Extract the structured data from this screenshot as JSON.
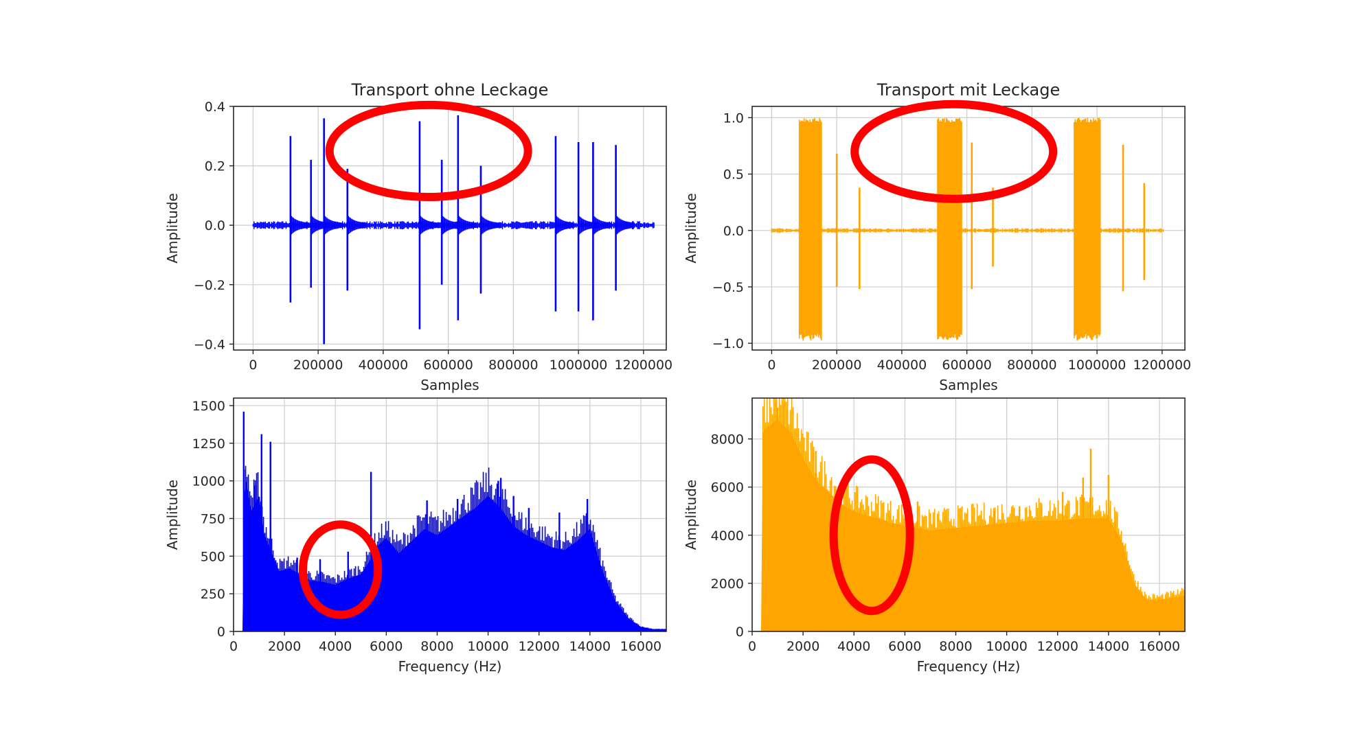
{
  "chart_data": [
    {
      "id": "time_a",
      "type": "line",
      "title": "Transport ohne Leckage",
      "xlabel": "Samples",
      "ylabel": "Amplitude",
      "xlim": [
        -60000,
        1270000
      ],
      "ylim": [
        -0.42,
        0.4
      ],
      "xticks": [
        0,
        200000,
        400000,
        600000,
        800000,
        1000000,
        1200000
      ],
      "xtick_labels": [
        "0",
        "200000",
        "400000",
        "600000",
        "800000",
        "1000000",
        "1200000"
      ],
      "yticks": [
        -0.4,
        -0.2,
        0.0,
        0.2,
        0.4
      ],
      "ytick_labels": [
        "−0.4",
        "−0.2",
        "0.0",
        "0.2",
        "0.4"
      ],
      "grid": true,
      "color": "#0000ff",
      "series": [
        {
          "x": [
            0,
            115000,
            178000,
            218000,
            290000,
            512000,
            580000,
            630000,
            700000,
            930000,
            1000000,
            1045000,
            1115000,
            1235000
          ],
          "peak_max": [
            0.005,
            0.3,
            0.22,
            0.36,
            0.19,
            0.35,
            0.22,
            0.37,
            0.2,
            0.3,
            0.28,
            0.28,
            0.27,
            0.005
          ],
          "peak_min": [
            -0.005,
            -0.26,
            -0.21,
            -0.4,
            -0.22,
            -0.35,
            -0.2,
            -0.32,
            -0.23,
            -0.29,
            -0.29,
            -0.32,
            -0.22,
            -0.005
          ]
        }
      ],
      "annotation": {
        "type": "ellipse",
        "cx": 540000,
        "cy": 0.25,
        "rx": 610000,
        "ry": 0.155,
        "color": "#ff0000"
      }
    },
    {
      "id": "time_b",
      "type": "line",
      "title": "Transport mit Leckage",
      "xlabel": "Samples",
      "ylabel": "Amplitude",
      "xlim": [
        -60000,
        1270000
      ],
      "ylim": [
        -1.06,
        1.1
      ],
      "xticks": [
        0,
        200000,
        400000,
        600000,
        800000,
        1000000,
        1200000
      ],
      "xtick_labels": [
        "0",
        "200000",
        "400000",
        "600000",
        "800000",
        "1000000",
        "1200000"
      ],
      "yticks": [
        -1.0,
        -0.5,
        0.0,
        0.5,
        1.0
      ],
      "ytick_labels": [
        "−1.0",
        "−0.5",
        "0.0",
        "0.5",
        "1.0"
      ],
      "grid": true,
      "color": "#ffa500",
      "series": [
        {
          "bursts": [
            [
              85000,
              155000
            ],
            [
              510000,
              585000
            ],
            [
              930000,
              1010000
            ]
          ],
          "spikes_x": [
            200000,
            270000,
            615000,
            680000,
            1080000,
            1145000
          ],
          "spikes_max": [
            0.68,
            0.38,
            0.78,
            0.38,
            0.76,
            0.42
          ],
          "spikes_min": [
            -0.5,
            -0.52,
            -0.52,
            -0.32,
            -0.54,
            -0.44
          ]
        }
      ],
      "annotation": {
        "type": "ellipse",
        "cx": 560000,
        "cy": 0.7,
        "rx": 610000,
        "ry": 0.42,
        "color": "#ff0000"
      }
    },
    {
      "id": "freq_a",
      "type": "area",
      "title": "",
      "xlabel": "Frequency (Hz)",
      "ylabel": "Amplitude",
      "xlim": [
        0,
        17000
      ],
      "ylim": [
        0,
        1550
      ],
      "xticks": [
        0,
        2000,
        4000,
        6000,
        8000,
        10000,
        12000,
        14000,
        16000
      ],
      "xtick_labels": [
        "0",
        "2000",
        "4000",
        "6000",
        "8000",
        "10000",
        "12000",
        "14000",
        "16000"
      ],
      "yticks": [
        0,
        250,
        500,
        750,
        1000,
        1250,
        1500
      ],
      "ytick_labels": [
        "0",
        "250",
        "500",
        "750",
        "1000",
        "1250",
        "1500"
      ],
      "grid": true,
      "color": "#0000ff",
      "series": [
        {
          "x": [
            0,
            350,
            420,
            500,
            700,
            1000,
            1200,
            1500,
            1800,
            2200,
            2600,
            3000,
            3500,
            4000,
            4500,
            5000,
            5400,
            5600,
            6000,
            6500,
            7000,
            7500,
            8000,
            8500,
            9000,
            9500,
            10000,
            10500,
            11000,
            11500,
            12000,
            12500,
            13000,
            13500,
            14000,
            14500,
            15000,
            15500,
            16000,
            16500,
            17000
          ],
          "y": [
            0,
            0,
            900,
            1000,
            800,
            900,
            650,
            520,
            400,
            420,
            380,
            340,
            330,
            310,
            350,
            380,
            480,
            560,
            620,
            520,
            600,
            680,
            640,
            700,
            760,
            820,
            900,
            820,
            700,
            640,
            600,
            560,
            540,
            600,
            680,
            400,
            200,
            90,
            30,
            15,
            15
          ],
          "peaks_x": [
            400,
            850,
            1100,
            1450,
            2500,
            3400,
            4500,
            5400,
            7600,
            8800,
            10400,
            10500,
            11000,
            11600,
            12800,
            13900
          ],
          "peaks_y": [
            1460,
            970,
            1310,
            1260,
            490,
            480,
            530,
            1060,
            870,
            880,
            1000,
            1020,
            900,
            820,
            790,
            880
          ]
        }
      ],
      "annotation": {
        "type": "ellipse",
        "cx": 4200,
        "cy": 410,
        "rx": 2950,
        "ry": 300,
        "color": "#ff0000"
      }
    },
    {
      "id": "freq_b",
      "type": "area",
      "title": "",
      "xlabel": "Frequency (Hz)",
      "ylabel": "Amplitude",
      "xlim": [
        0,
        17000
      ],
      "ylim": [
        0,
        9700
      ],
      "xticks": [
        0,
        2000,
        4000,
        6000,
        8000,
        10000,
        12000,
        14000,
        16000
      ],
      "xtick_labels": [
        "0",
        "2000",
        "4000",
        "6000",
        "8000",
        "10000",
        "12000",
        "14000",
        "16000"
      ],
      "yticks": [
        0,
        2000,
        4000,
        6000,
        8000
      ],
      "ytick_labels": [
        "0",
        "2000",
        "4000",
        "6000",
        "8000"
      ],
      "grid": true,
      "color": "#ffa500",
      "series": [
        {
          "x": [
            0,
            350,
            420,
            500,
            1000,
            1500,
            2000,
            2500,
            3000,
            3500,
            4000,
            4500,
            5000,
            5500,
            6000,
            6500,
            7000,
            7500,
            8000,
            9000,
            10000,
            11000,
            12000,
            13000,
            14000,
            14500,
            15000,
            15500,
            16000,
            16500,
            17000
          ],
          "y": [
            0,
            0,
            8200,
            8400,
            8800,
            8300,
            7200,
            6300,
            5800,
            5300,
            5000,
            4800,
            4700,
            4500,
            4400,
            4300,
            4200,
            4250,
            4300,
            4400,
            4500,
            4600,
            4600,
            4700,
            4700,
            3800,
            2000,
            1300,
            1300,
            1400,
            1500
          ],
          "peaks_x": [
            1000,
            2500,
            3500,
            6500,
            9500,
            10500,
            12200,
            13000,
            13300,
            14000
          ],
          "peaks_y": [
            9300,
            7500,
            6000,
            5400,
            5000,
            5200,
            5800,
            6400,
            7600,
            6500
          ]
        }
      ],
      "annotation": {
        "type": "ellipse",
        "cx": 4700,
        "cy": 4000,
        "rx": 3000,
        "ry": 3150,
        "color": "#ff0000"
      }
    }
  ]
}
